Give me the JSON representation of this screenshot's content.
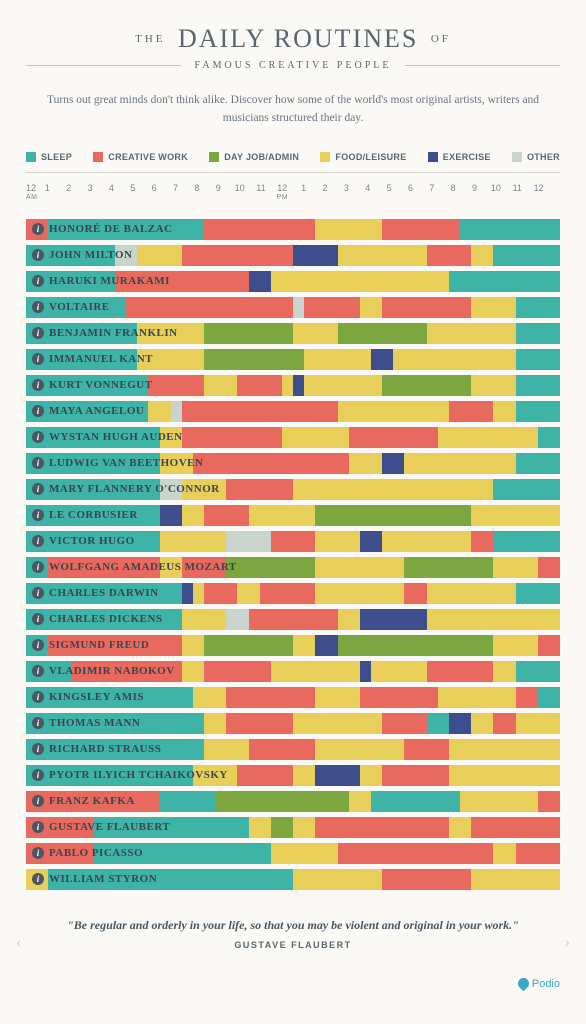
{
  "colors": {
    "sleep": "#3eb3a8",
    "creative": "#e86a5e",
    "dayjob": "#7ba640",
    "food": "#e8cf5a",
    "exercise": "#3e4e8c",
    "other": "#c8d4cc",
    "bg": "#faf9f5"
  },
  "title": {
    "the": "THE",
    "main": "DAILY ROUTINES",
    "of": "OF",
    "subtitle": "FAMOUS CREATIVE PEOPLE"
  },
  "intro": "Turns out great minds don't think alike. Discover how some of the world's most original artists, writers and musicians structured their day.",
  "legend": [
    {
      "label": "SLEEP",
      "key": "sleep"
    },
    {
      "label": "CREATIVE WORK",
      "key": "creative"
    },
    {
      "label": "DAY JOB/ADMIN",
      "key": "dayjob"
    },
    {
      "label": "FOOD/LEISURE",
      "key": "food"
    },
    {
      "label": "EXERCISE",
      "key": "exercise"
    },
    {
      "label": "OTHER",
      "key": "other"
    }
  ],
  "axis": {
    "labels": [
      "12",
      "1",
      "2",
      "3",
      "4",
      "5",
      "6",
      "7",
      "8",
      "9",
      "10",
      "11",
      "12",
      "1",
      "2",
      "3",
      "4",
      "5",
      "6",
      "7",
      "8",
      "9",
      "10",
      "11",
      "12"
    ],
    "am": "AM",
    "pm": "PM"
  },
  "people": [
    {
      "name": "HONORÉ DE BALZAC",
      "segments": [
        [
          "creative",
          1
        ],
        [
          "sleep",
          7
        ],
        [
          "creative",
          5
        ],
        [
          "food",
          3
        ],
        [
          "creative",
          3.5
        ],
        [
          "sleep",
          4.5
        ]
      ]
    },
    {
      "name": "JOHN MILTON",
      "segments": [
        [
          "sleep",
          4
        ],
        [
          "other",
          1
        ],
        [
          "food",
          2
        ],
        [
          "creative",
          5
        ],
        [
          "exercise",
          2
        ],
        [
          "food",
          1
        ],
        [
          "food",
          3
        ],
        [
          "creative",
          2
        ],
        [
          "food",
          1
        ],
        [
          "sleep",
          3
        ]
      ]
    },
    {
      "name": "HARUKI MURAKAMI",
      "segments": [
        [
          "sleep",
          4
        ],
        [
          "creative",
          6
        ],
        [
          "exercise",
          1
        ],
        [
          "food",
          3
        ],
        [
          "food",
          2
        ],
        [
          "food",
          3
        ],
        [
          "sleep",
          5
        ]
      ]
    },
    {
      "name": "VOLTAIRE",
      "segments": [
        [
          "sleep",
          4.5
        ],
        [
          "creative",
          7.5
        ],
        [
          "other",
          0.5
        ],
        [
          "creative",
          2.5
        ],
        [
          "food",
          1
        ],
        [
          "creative",
          4
        ],
        [
          "food",
          2
        ],
        [
          "sleep",
          2
        ]
      ]
    },
    {
      "name": "BENJAMIN FRANKLIN",
      "segments": [
        [
          "sleep",
          5
        ],
        [
          "food",
          3
        ],
        [
          "dayjob",
          4
        ],
        [
          "food",
          2
        ],
        [
          "dayjob",
          4
        ],
        [
          "food",
          4
        ],
        [
          "sleep",
          2
        ]
      ]
    },
    {
      "name": "IMMANUEL KANT",
      "segments": [
        [
          "sleep",
          5
        ],
        [
          "food",
          3
        ],
        [
          "dayjob",
          4.5
        ],
        [
          "food",
          3
        ],
        [
          "exercise",
          1
        ],
        [
          "food",
          5.5
        ],
        [
          "sleep",
          2
        ]
      ]
    },
    {
      "name": "KURT VONNEGUT",
      "segments": [
        [
          "sleep",
          5.5
        ],
        [
          "creative",
          2.5
        ],
        [
          "food",
          1.5
        ],
        [
          "creative",
          2
        ],
        [
          "food",
          0.5
        ],
        [
          "exercise",
          0.5
        ],
        [
          "food",
          3.5
        ],
        [
          "dayjob",
          4
        ],
        [
          "food",
          2
        ],
        [
          "sleep",
          2
        ]
      ]
    },
    {
      "name": "MAYA ANGELOU",
      "segments": [
        [
          "sleep",
          5.5
        ],
        [
          "food",
          1
        ],
        [
          "other",
          0.5
        ],
        [
          "creative",
          7
        ],
        [
          "food",
          5
        ],
        [
          "creative",
          2
        ],
        [
          "food",
          1
        ],
        [
          "sleep",
          2
        ]
      ]
    },
    {
      "name": "WYSTAN HUGH AUDEN",
      "segments": [
        [
          "sleep",
          6
        ],
        [
          "food",
          1
        ],
        [
          "creative",
          4.5
        ],
        [
          "food",
          1.5
        ],
        [
          "food",
          1.5
        ],
        [
          "creative",
          4
        ],
        [
          "food",
          4.5
        ],
        [
          "sleep",
          1
        ]
      ]
    },
    {
      "name": "LUDWIG VAN BEETHOVEN",
      "segments": [
        [
          "sleep",
          6
        ],
        [
          "food",
          1.5
        ],
        [
          "creative",
          7
        ],
        [
          "food",
          1.5
        ],
        [
          "exercise",
          1
        ],
        [
          "food",
          3
        ],
        [
          "food",
          2
        ],
        [
          "sleep",
          2
        ]
      ]
    },
    {
      "name": "MARY FLANNERY O'CONNOR",
      "segments": [
        [
          "sleep",
          6
        ],
        [
          "other",
          1
        ],
        [
          "food",
          2
        ],
        [
          "creative",
          3
        ],
        [
          "food",
          9
        ],
        [
          "sleep",
          3
        ]
      ]
    },
    {
      "name": "LE CORBUSIER",
      "segments": [
        [
          "sleep",
          6
        ],
        [
          "exercise",
          1
        ],
        [
          "food",
          1
        ],
        [
          "creative",
          2
        ],
        [
          "food",
          3
        ],
        [
          "dayjob",
          7
        ],
        [
          "food",
          4
        ]
      ]
    },
    {
      "name": "VICTOR HUGO",
      "segments": [
        [
          "sleep",
          6
        ],
        [
          "food",
          3
        ],
        [
          "other",
          2
        ],
        [
          "creative",
          2
        ],
        [
          "food",
          2
        ],
        [
          "exercise",
          1
        ],
        [
          "food",
          2
        ],
        [
          "food",
          2
        ],
        [
          "creative",
          1
        ],
        [
          "sleep",
          3
        ]
      ]
    },
    {
      "name": "WOLFGANG AMADEUS MOZART",
      "segments": [
        [
          "sleep",
          1
        ],
        [
          "creative",
          5
        ],
        [
          "food",
          1
        ],
        [
          "creative",
          2
        ],
        [
          "dayjob",
          4
        ],
        [
          "food",
          4
        ],
        [
          "dayjob",
          4
        ],
        [
          "food",
          2
        ],
        [
          "creative",
          1
        ]
      ]
    },
    {
      "name": "CHARLES DARWIN",
      "segments": [
        [
          "sleep",
          7
        ],
        [
          "exercise",
          0.5
        ],
        [
          "food",
          0.5
        ],
        [
          "creative",
          1.5
        ],
        [
          "food",
          1
        ],
        [
          "creative",
          2.5
        ],
        [
          "food",
          2
        ],
        [
          "food",
          2
        ],
        [
          "creative",
          1
        ],
        [
          "food",
          4
        ],
        [
          "sleep",
          2
        ]
      ]
    },
    {
      "name": "CHARLES DICKENS",
      "segments": [
        [
          "sleep",
          7
        ],
        [
          "food",
          2
        ],
        [
          "other",
          1
        ],
        [
          "creative",
          4
        ],
        [
          "food",
          1
        ],
        [
          "exercise",
          3
        ],
        [
          "food",
          6
        ]
      ]
    },
    {
      "name": "SIGMUND FREUD",
      "segments": [
        [
          "sleep",
          1
        ],
        [
          "creative",
          6
        ],
        [
          "food",
          1
        ],
        [
          "dayjob",
          4
        ],
        [
          "food",
          1
        ],
        [
          "exercise",
          1
        ],
        [
          "dayjob",
          7
        ],
        [
          "food",
          2
        ],
        [
          "creative",
          1
        ]
      ]
    },
    {
      "name": "VLADIMIR NABOKOV",
      "segments": [
        [
          "sleep",
          2
        ],
        [
          "creative",
          5
        ],
        [
          "food",
          1
        ],
        [
          "creative",
          3
        ],
        [
          "food",
          1.5
        ],
        [
          "food",
          2.5
        ],
        [
          "exercise",
          0.5
        ],
        [
          "food",
          2.5
        ],
        [
          "creative",
          3
        ],
        [
          "food",
          1
        ],
        [
          "sleep",
          2
        ]
      ]
    },
    {
      "name": "KINGSLEY AMIS",
      "segments": [
        [
          "sleep",
          7.5
        ],
        [
          "food",
          1.5
        ],
        [
          "creative",
          4
        ],
        [
          "food",
          2
        ],
        [
          "creative",
          3.5
        ],
        [
          "food",
          2.5
        ],
        [
          "food",
          1
        ],
        [
          "creative",
          1
        ],
        [
          "sleep",
          1
        ]
      ]
    },
    {
      "name": "THOMAS MANN",
      "segments": [
        [
          "sleep",
          8
        ],
        [
          "food",
          1
        ],
        [
          "creative",
          3
        ],
        [
          "food",
          4
        ],
        [
          "creative",
          2
        ],
        [
          "sleep",
          1
        ],
        [
          "exercise",
          1
        ],
        [
          "food",
          1
        ],
        [
          "creative",
          1
        ],
        [
          "food",
          2
        ]
      ]
    },
    {
      "name": "RICHARD STRAUSS",
      "segments": [
        [
          "sleep",
          8
        ],
        [
          "food",
          2
        ],
        [
          "creative",
          3
        ],
        [
          "food",
          4
        ],
        [
          "creative",
          2
        ],
        [
          "food",
          5
        ]
      ]
    },
    {
      "name": "PYOTR ILYICH TCHAIKOVSKY",
      "segments": [
        [
          "sleep",
          7.5
        ],
        [
          "food",
          2
        ],
        [
          "creative",
          2.5
        ],
        [
          "food",
          1
        ],
        [
          "exercise",
          2
        ],
        [
          "food",
          1
        ],
        [
          "creative",
          3
        ],
        [
          "food",
          5
        ]
      ]
    },
    {
      "name": "FRANZ KAFKA",
      "segments": [
        [
          "creative",
          6
        ],
        [
          "sleep",
          2.5
        ],
        [
          "dayjob",
          6
        ],
        [
          "food",
          1
        ],
        [
          "sleep",
          4
        ],
        [
          "food",
          2.5
        ],
        [
          "food",
          1
        ],
        [
          "creative",
          1
        ]
      ]
    },
    {
      "name": "GUSTAVE FLAUBERT",
      "segments": [
        [
          "creative",
          3
        ],
        [
          "sleep",
          7
        ],
        [
          "food",
          1
        ],
        [
          "dayjob",
          1
        ],
        [
          "food",
          1
        ],
        [
          "creative",
          6
        ],
        [
          "food",
          1
        ],
        [
          "creative",
          4
        ]
      ]
    },
    {
      "name": "PABLO PICASSO",
      "segments": [
        [
          "creative",
          3
        ],
        [
          "sleep",
          8
        ],
        [
          "food",
          3
        ],
        [
          "creative",
          7
        ],
        [
          "food",
          1
        ],
        [
          "creative",
          2
        ]
      ]
    },
    {
      "name": "WILLIAM STYRON",
      "segments": [
        [
          "food",
          1
        ],
        [
          "sleep",
          11
        ],
        [
          "food",
          1
        ],
        [
          "food",
          2
        ],
        [
          "food",
          1
        ],
        [
          "creative",
          4
        ],
        [
          "food",
          4
        ]
      ]
    }
  ],
  "quote": {
    "text": "\"Be regular and orderly in your life, so that you may be violent and original in your work.\"",
    "author": "GUSTAVE FLAUBERT"
  },
  "brand": "Podio"
}
